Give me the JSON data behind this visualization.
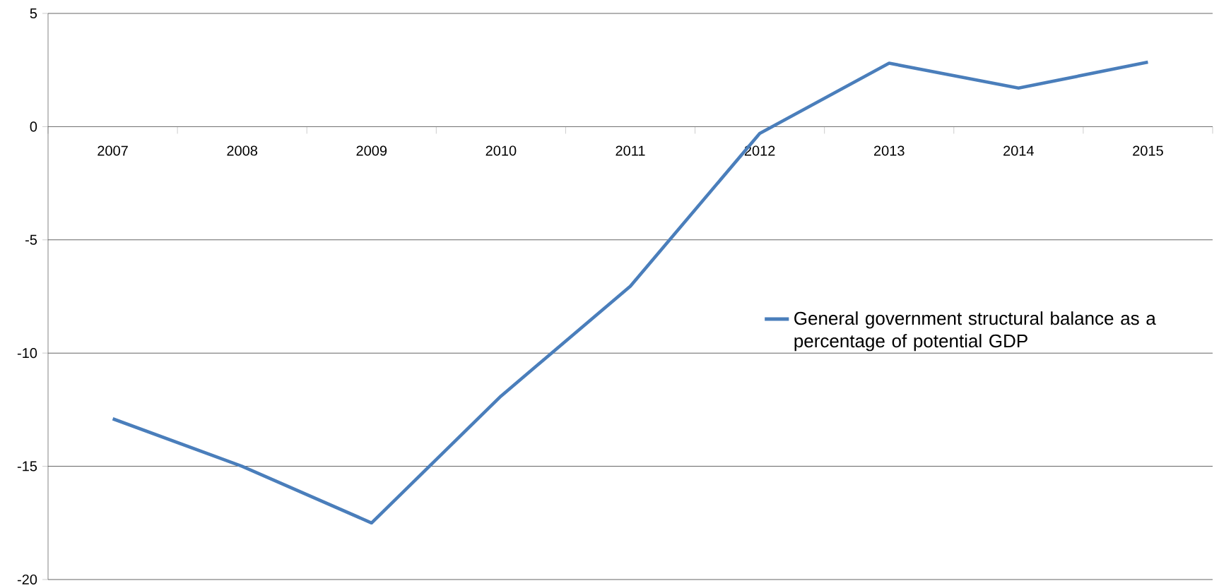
{
  "chart_data": {
    "type": "line",
    "categories": [
      "2007",
      "2008",
      "2009",
      "2010",
      "2011",
      "2012",
      "2013",
      "2014",
      "2015"
    ],
    "series": [
      {
        "name": "General government structural balance as a percentage of potential GDP",
        "color": "#4a7ebb",
        "values": [
          -12.9,
          -15.0,
          -17.5,
          -11.9,
          -7.05,
          -0.3,
          2.8,
          1.7,
          2.85
        ]
      }
    ],
    "ylim": [
      -20,
      5
    ],
    "yticks": [
      -20,
      -15,
      -10,
      -5,
      0,
      5
    ],
    "grid": "y",
    "legend": "right",
    "marker": "none",
    "line_style": "solid"
  }
}
